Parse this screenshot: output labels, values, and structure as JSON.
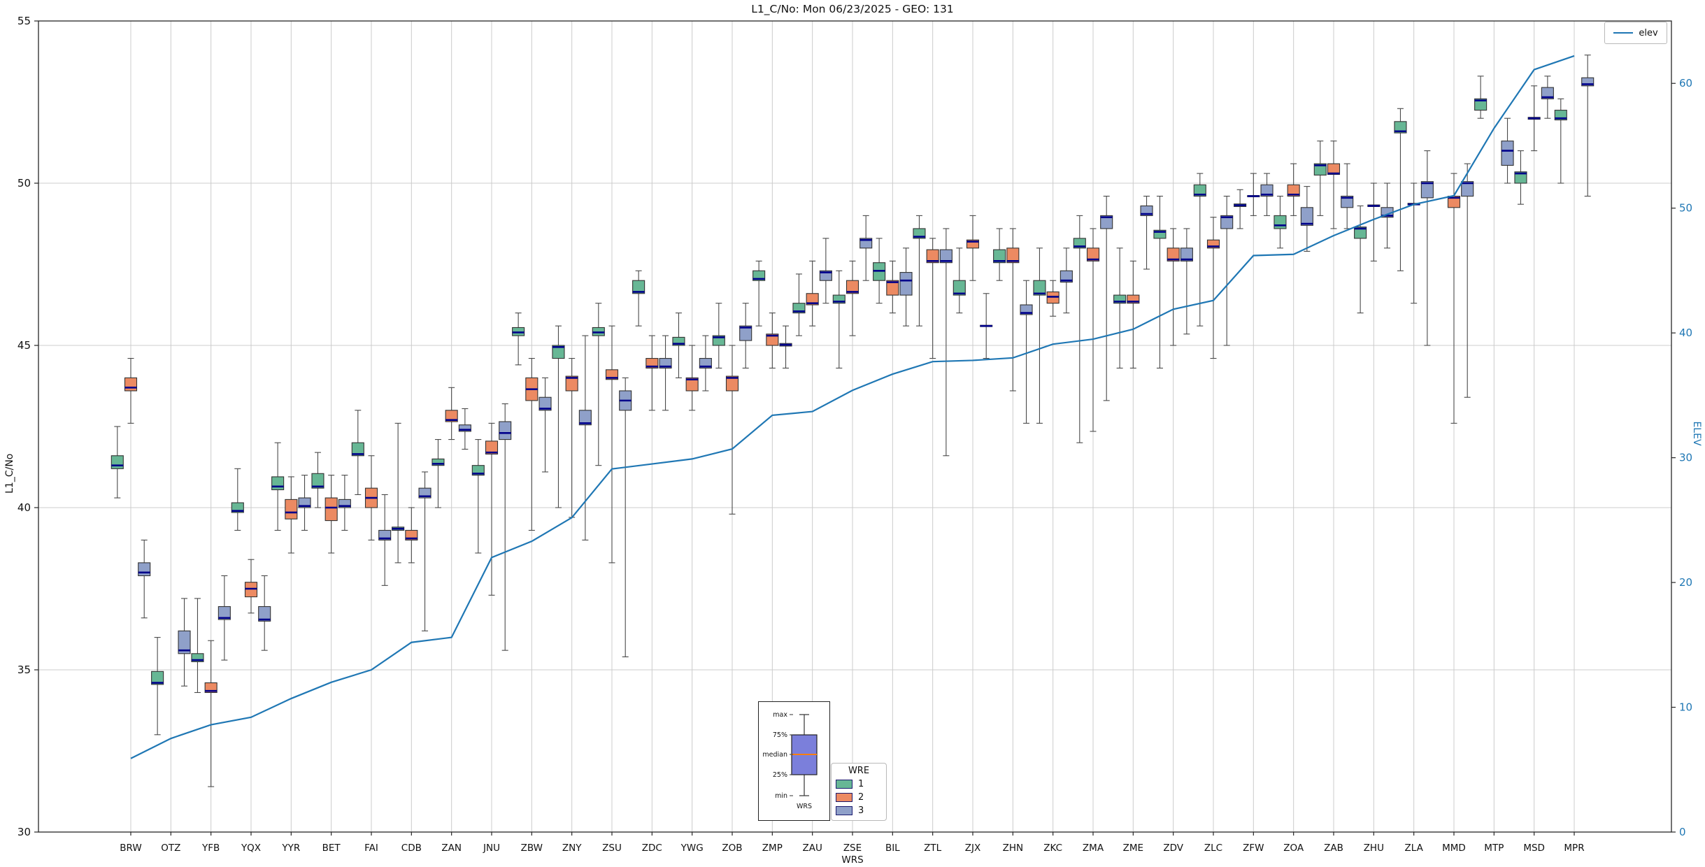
{
  "title": "L1_C/No: Mon 06/23/2025 - GEO: 131",
  "axes": {
    "ylabel_left": "L1_C/No",
    "ylabel_right": "ELEV",
    "xlabel": "WRS",
    "yticks_left": [
      55,
      50,
      45,
      40,
      35,
      30
    ],
    "yticks_right": [
      60,
      50,
      40,
      30,
      20,
      10,
      0
    ]
  },
  "legend_elev": {
    "label": "elev"
  },
  "legend_wre": {
    "title": "WRE",
    "entries": [
      {
        "label": "1",
        "color": "#67b795"
      },
      {
        "label": "2",
        "color": "#ec8a62"
      },
      {
        "label": "3",
        "color": "#8fa0c9"
      }
    ]
  },
  "inset": {
    "labels": [
      "max",
      "75%",
      "median",
      "25%",
      "min"
    ],
    "xlabel": "WRS",
    "box_color": "#7b7fdb",
    "median_color": "#ff7f0e"
  },
  "colors": {
    "grid": "#cccccc",
    "frame": "#262626",
    "whisker": "#4a4a4a",
    "box_edge": "#333333",
    "median": "#00008b",
    "elev_line": "#1f77b4",
    "right_axis_text": "#1f77b4"
  },
  "chart_data": {
    "type": "boxplot+line",
    "title": "L1_C/No: Mon 06/23/2025 - GEO: 131",
    "xlabel": "WRS",
    "ylabel": "L1_C/No",
    "ylabel2": "ELEV",
    "ylim_left": [
      30,
      55
    ],
    "ylim_right": [
      0,
      65
    ],
    "grid": true,
    "box_format": "[whisker_low, q1, median, q3, whisker_high]",
    "categories": [
      "BRW",
      "OTZ",
      "YFB",
      "YQX",
      "YYR",
      "BET",
      "FAI",
      "CDB",
      "ZAN",
      "JNU",
      "ZBW",
      "ZNY",
      "ZSU",
      "ZDC",
      "YWG",
      "ZOB",
      "ZMP",
      "ZAU",
      "ZSE",
      "BIL",
      "ZTL",
      "ZJX",
      "ZHN",
      "ZKC",
      "ZMA",
      "ZME",
      "ZDV",
      "ZLC",
      "ZFW",
      "ZOA",
      "ZAB",
      "ZHU",
      "ZLA",
      "MMD",
      "MTP",
      "MSD",
      "MPR"
    ],
    "series": [
      {
        "name": "1",
        "color": "#67b795",
        "boxes": [
          [
            40.3,
            41.2,
            41.3,
            41.6,
            42.5
          ],
          [
            33.0,
            34.55,
            34.6,
            34.95,
            36.0
          ],
          [
            34.3,
            35.25,
            35.3,
            35.5,
            37.2
          ],
          [
            39.3,
            39.85,
            39.9,
            40.15,
            41.2
          ],
          [
            39.3,
            40.55,
            40.65,
            40.95,
            42.0
          ],
          [
            40.0,
            40.6,
            40.65,
            41.05,
            41.7
          ],
          [
            40.4,
            41.6,
            41.65,
            42.0,
            43.0
          ],
          [
            38.3,
            39.3,
            39.35,
            39.4,
            42.6
          ],
          [
            40.0,
            41.3,
            41.35,
            41.5,
            42.1
          ],
          [
            38.6,
            41.0,
            41.05,
            41.3,
            42.1
          ],
          [
            44.4,
            45.3,
            45.4,
            45.55,
            46.0
          ],
          [
            40.0,
            44.6,
            44.95,
            45.0,
            45.6
          ],
          [
            41.3,
            45.3,
            45.4,
            45.55,
            46.3
          ],
          [
            45.6,
            46.6,
            46.65,
            47.0,
            47.3
          ],
          [
            44.0,
            45.0,
            45.05,
            45.25,
            46.0
          ],
          [
            44.3,
            45.0,
            45.25,
            45.3,
            46.3
          ],
          [
            45.6,
            47.0,
            47.05,
            47.3,
            47.6
          ],
          [
            45.3,
            46.0,
            46.05,
            46.3,
            47.2
          ],
          [
            44.3,
            46.3,
            46.35,
            46.55,
            47.3
          ],
          [
            46.3,
            47.0,
            47.3,
            47.55,
            48.3
          ],
          [
            45.6,
            48.3,
            48.35,
            48.6,
            49.0
          ],
          [
            46.0,
            46.55,
            46.6,
            47.0,
            48.0
          ],
          [
            47.0,
            47.55,
            47.6,
            47.95,
            48.6
          ],
          [
            42.6,
            46.55,
            46.6,
            47.0,
            48.0
          ],
          [
            42.0,
            48.0,
            48.05,
            48.3,
            49.0
          ],
          [
            44.3,
            46.3,
            46.35,
            46.55,
            48.0
          ],
          [
            44.3,
            48.3,
            48.5,
            48.55,
            49.6
          ],
          [
            45.6,
            49.6,
            49.65,
            49.95,
            50.3
          ],
          [
            48.6,
            49.28,
            49.32,
            49.36,
            49.8
          ],
          [
            48.0,
            48.6,
            48.7,
            49.0,
            49.6
          ],
          [
            49.0,
            50.25,
            50.55,
            50.6,
            51.3
          ],
          [
            46.0,
            48.3,
            48.6,
            48.65,
            49.3
          ],
          [
            47.3,
            51.55,
            51.6,
            51.9,
            52.3
          ],
          null,
          [
            52.0,
            52.25,
            52.55,
            52.6,
            53.3
          ],
          [
            49.35,
            50.0,
            50.3,
            50.35,
            51.0
          ],
          [
            50.0,
            51.95,
            52.0,
            52.25,
            52.6
          ]
        ]
      },
      {
        "name": "2",
        "color": "#ec8a62",
        "boxes": [
          [
            42.6,
            43.6,
            43.7,
            44.0,
            44.6
          ],
          null,
          [
            31.4,
            34.3,
            34.35,
            34.6,
            35.9
          ],
          [
            36.75,
            37.25,
            37.5,
            37.7,
            38.4
          ],
          [
            38.6,
            39.65,
            39.85,
            40.25,
            40.95
          ],
          [
            38.6,
            39.6,
            40.0,
            40.3,
            41.0
          ],
          [
            39.0,
            40.0,
            40.3,
            40.6,
            41.6
          ],
          [
            38.3,
            39.0,
            39.05,
            39.3,
            40.0
          ],
          [
            42.1,
            42.65,
            42.7,
            43.0,
            43.7
          ],
          [
            37.3,
            41.65,
            41.7,
            42.05,
            42.6
          ],
          [
            39.3,
            43.3,
            43.65,
            44.0,
            44.6
          ],
          [
            39.7,
            43.6,
            44.0,
            44.05,
            44.6
          ],
          [
            38.3,
            43.95,
            44.0,
            44.25,
            45.6
          ],
          [
            43.0,
            44.3,
            44.35,
            44.6,
            45.3
          ],
          [
            43.0,
            43.6,
            43.95,
            44.0,
            45.0
          ],
          [
            39.8,
            43.6,
            44.0,
            44.05,
            45.0
          ],
          [
            44.3,
            45.0,
            45.3,
            45.35,
            46.0
          ],
          [
            45.6,
            46.25,
            46.3,
            46.6,
            47.6
          ],
          [
            45.3,
            46.6,
            46.65,
            47.0,
            47.6
          ],
          [
            46.0,
            46.55,
            46.95,
            47.0,
            47.6
          ],
          [
            44.6,
            47.55,
            47.6,
            47.95,
            48.3
          ],
          [
            47.0,
            48.0,
            48.2,
            48.25,
            49.0
          ],
          [
            43.6,
            47.55,
            47.6,
            48.0,
            48.6
          ],
          [
            45.9,
            46.3,
            46.5,
            46.65,
            47.0
          ],
          [
            42.35,
            47.6,
            47.65,
            48.0,
            48.6
          ],
          [
            44.3,
            46.3,
            46.35,
            46.55,
            47.6
          ],
          [
            45.0,
            47.6,
            47.65,
            48.0,
            48.6
          ],
          [
            44.6,
            48.0,
            48.05,
            48.25,
            48.95
          ],
          [
            49.0,
            49.58,
            49.6,
            49.62,
            50.3
          ],
          [
            49.0,
            49.6,
            49.65,
            49.95,
            50.6
          ],
          [
            48.6,
            50.27,
            50.3,
            50.6,
            51.3
          ],
          [
            47.6,
            49.28,
            49.3,
            49.33,
            50.0
          ],
          [
            46.3,
            49.33,
            49.35,
            49.38,
            50.0
          ],
          [
            42.6,
            49.25,
            49.55,
            49.6,
            50.3
          ],
          null,
          [
            51.0,
            51.97,
            52.0,
            52.03,
            53.0
          ],
          null
        ]
      },
      {
        "name": "3",
        "color": "#8fa0c9",
        "boxes": [
          [
            36.6,
            37.9,
            38.0,
            38.3,
            39.0
          ],
          [
            34.5,
            35.5,
            35.6,
            36.2,
            37.2
          ],
          [
            35.3,
            36.55,
            36.6,
            36.95,
            37.9
          ],
          [
            35.6,
            36.5,
            36.55,
            36.95,
            37.9
          ],
          [
            39.3,
            40.0,
            40.05,
            40.3,
            41.0
          ],
          [
            39.3,
            40.0,
            40.05,
            40.25,
            41.0
          ],
          [
            37.6,
            39.0,
            39.05,
            39.3,
            40.4
          ],
          [
            36.2,
            40.3,
            40.35,
            40.6,
            41.1
          ],
          [
            41.8,
            42.35,
            42.4,
            42.55,
            43.05
          ],
          [
            35.6,
            42.1,
            42.3,
            42.65,
            43.2
          ],
          [
            41.1,
            43.0,
            43.05,
            43.4,
            44.0
          ],
          [
            39.0,
            42.55,
            42.6,
            43.0,
            45.3
          ],
          [
            35.4,
            43.0,
            43.3,
            43.6,
            44.0
          ],
          [
            43.0,
            44.3,
            44.35,
            44.6,
            45.3
          ],
          [
            43.6,
            44.3,
            44.35,
            44.6,
            45.3
          ],
          [
            44.3,
            45.15,
            45.55,
            45.6,
            46.3
          ],
          [
            44.3,
            44.98,
            45.02,
            45.06,
            45.6
          ],
          [
            46.3,
            47.0,
            47.25,
            47.3,
            48.3
          ],
          [
            47.0,
            48.0,
            48.25,
            48.3,
            49.0
          ],
          [
            45.6,
            46.55,
            47.0,
            47.25,
            48.0
          ],
          [
            41.6,
            47.55,
            47.6,
            47.95,
            48.6
          ],
          [
            44.6,
            45.58,
            45.6,
            45.62,
            46.6
          ],
          [
            42.6,
            45.95,
            46.0,
            46.25,
            47.0
          ],
          [
            46.0,
            46.95,
            47.0,
            47.3,
            48.0
          ],
          [
            43.3,
            48.6,
            48.95,
            49.0,
            49.6
          ],
          [
            47.35,
            49.0,
            49.05,
            49.3,
            49.6
          ],
          [
            45.35,
            47.6,
            47.65,
            48.0,
            48.6
          ],
          [
            45.0,
            48.6,
            48.95,
            49.0,
            49.6
          ],
          [
            49.0,
            49.6,
            49.65,
            49.95,
            50.3
          ],
          [
            47.9,
            48.7,
            48.75,
            49.25,
            49.9
          ],
          [
            48.6,
            49.25,
            49.55,
            49.6,
            50.6
          ],
          [
            48.0,
            48.95,
            49.0,
            49.25,
            50.0
          ],
          [
            45.0,
            49.55,
            50.0,
            50.05,
            51.0
          ],
          [
            43.4,
            49.6,
            50.0,
            50.05,
            50.6
          ],
          [
            50.0,
            50.55,
            51.0,
            51.3,
            52.0
          ],
          [
            52.0,
            52.6,
            52.65,
            52.95,
            53.3
          ],
          [
            49.6,
            53.0,
            53.05,
            53.25,
            53.95
          ]
        ]
      }
    ],
    "line": {
      "name": "elev",
      "color": "#1f77b4",
      "axis": "right",
      "values": [
        5.9,
        7.5,
        8.6,
        9.2,
        10.7,
        12.0,
        13.0,
        15.2,
        15.6,
        22.0,
        23.3,
        25.2,
        29.1,
        29.5,
        29.9,
        30.7,
        33.4,
        33.7,
        35.4,
        36.7,
        37.7,
        37.8,
        38.0,
        39.1,
        39.5,
        40.3,
        41.9,
        42.6,
        46.2,
        46.3,
        47.8,
        49.1,
        50.3,
        51.0,
        56.4,
        61.1,
        62.2
      ]
    },
    "legend_position": "upper right"
  }
}
